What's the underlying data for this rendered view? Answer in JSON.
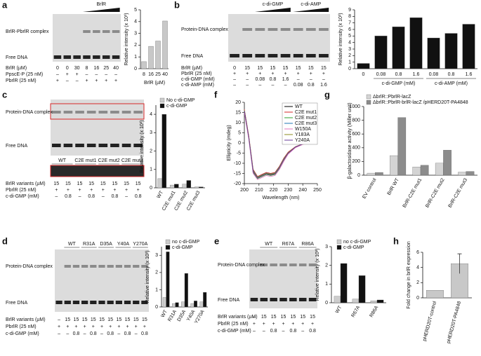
{
  "panels": [
    "a",
    "b",
    "c",
    "f",
    "g",
    "d",
    "e",
    "h"
  ],
  "gels": [
    {
      "top_labels": [
        "BrlR"
      ],
      "band_labels": [
        "BrlR-PbrlR complex",
        "Free DNA"
      ],
      "lane_labels": [],
      "rows": [
        {
          "label": "BrlR (µM)",
          "cells": [
            0,
            0,
            30,
            8,
            16,
            25,
            40
          ]
        },
        {
          "label": "PpscE-P (25 nM)",
          "cells": [
            "–",
            "+",
            "+",
            "–",
            "–",
            "–",
            "–"
          ]
        },
        {
          "label": "PbrlR (25 nM)",
          "cells": [
            "+",
            "–",
            "–",
            "+",
            "+",
            "+",
            "+"
          ]
        }
      ]
    },
    {
      "top_labels": [
        "c-di-GMP",
        "c-di-AMP"
      ],
      "band_labels": [
        "Protein-DNA complex",
        "Free DNA"
      ],
      "lane_labels": [],
      "rows": [
        {
          "label": "BrlR (µM)",
          "cells": [
            0,
            15,
            15,
            15,
            15,
            15,
            15,
            15
          ]
        },
        {
          "label": "PbrlR (25 nM)",
          "cells": [
            "+",
            "+",
            "+",
            "+",
            "+",
            "+",
            "+",
            "+"
          ]
        },
        {
          "label": "c-di-GMP (mM)",
          "cells": [
            "–",
            "–",
            0.08,
            0.8,
            1.6,
            "–",
            "–",
            "–"
          ]
        },
        {
          "label": "c-di-AMP (mM)",
          "cells": [
            "–",
            "–",
            "–",
            "–",
            "–",
            0.08,
            0.8,
            1.6
          ]
        }
      ]
    },
    {
      "top_labels": [],
      "band_labels": [
        "Protein-DNA complex",
        "Free DNA"
      ],
      "lane_labels": [
        "WT",
        "C2E mut1",
        "C2E mut2",
        "C2E mut3"
      ],
      "rows": [
        {
          "label": "BrlR variants (µM)",
          "cells": [
            15,
            15,
            15,
            15,
            15,
            15,
            15,
            15
          ]
        },
        {
          "label": "PbrlR (25 nM)",
          "cells": [
            "+",
            "+",
            "+",
            "+",
            "+",
            "+",
            "+",
            "+"
          ]
        },
        {
          "label": "c-di-GMP (mM)",
          "cells": [
            "–",
            0.8,
            "–",
            0.8,
            "–",
            0.8,
            "–",
            0.8
          ]
        }
      ]
    },
    {
      "top_labels": [],
      "band_labels": [
        "Protein-DNA complex",
        "Free DNA"
      ],
      "lane_labels": [
        "WT",
        "R31A",
        "D35A",
        "Y40A",
        "Y270A"
      ],
      "rows": [
        {
          "label": "BrlR variants (µM)",
          "cells": [
            "–",
            15,
            15,
            15,
            15,
            15,
            15,
            15,
            15,
            15,
            15
          ]
        },
        {
          "label": "PbrlR (25 nM)",
          "cells": [
            "+",
            "+",
            "+",
            "+",
            "+",
            "+",
            "+",
            "+",
            "+",
            "+",
            "+"
          ]
        },
        {
          "label": "c-di-GMP (mM)",
          "cells": [
            "–",
            "–",
            0.8,
            "–",
            0.8,
            "–",
            0.8,
            "–",
            0.8,
            "–",
            0.8
          ]
        }
      ]
    },
    {
      "top_labels": [],
      "band_labels": [
        "Protein-DNA complex",
        "Free DNA"
      ],
      "lane_labels": [
        "WT",
        "R67A",
        "R86A"
      ],
      "rows": [
        {
          "label": "BrlR variants (µM)",
          "cells": [
            "–",
            15,
            15,
            15,
            15,
            15,
            15
          ]
        },
        {
          "label": "PbrlR (25 nM)",
          "cells": [
            "+",
            "+",
            "+",
            "+",
            "+",
            "+",
            "+"
          ]
        },
        {
          "label": "c-di-GMP (mM)",
          "cells": [
            "–",
            "–",
            0.8,
            "–",
            0.8,
            "–",
            0.8
          ]
        }
      ]
    }
  ],
  "chart_data": [
    {
      "type": "bar",
      "ylabel": "Relative intensity (x 10³)",
      "xlabel": "BrlR (µM)",
      "categories": [
        8,
        16,
        25,
        40
      ],
      "values": [
        0.6,
        1.9,
        2.35,
        4.05
      ],
      "color": "#c8c8c8",
      "ylim": [
        0,
        5
      ],
      "yticks": [
        0,
        1,
        2,
        3,
        4,
        5
      ]
    },
    {
      "type": "bar",
      "ylabel": "Relative intensity (x 10³)",
      "categories": [
        0,
        0.08,
        0.8,
        1.6,
        0.08,
        0.8,
        1.6
      ],
      "group_labels": [
        "c-di-GMP (mM)",
        "c-di-AMP (mM)"
      ],
      "values": [
        0.8,
        5.0,
        6.4,
        7.8,
        4.7,
        5.4,
        6.8
      ],
      "color": "#111111",
      "ylim": [
        0,
        9
      ],
      "yticks": [
        0,
        1,
        2,
        3,
        4,
        5,
        6,
        7,
        8,
        9
      ]
    },
    {
      "type": "bar",
      "ylabel": "Relative intensity (x 10³)",
      "categories": [
        "WT",
        "C2E mut1",
        "C2E mut2",
        "C2E mut3"
      ],
      "series": [
        {
          "name": "No c-di-GMP",
          "color": "#cccccc",
          "values": [
            0.5,
            0.15,
            0.2,
            0.05
          ]
        },
        {
          "name": "c-di-GMP",
          "color": "#111111",
          "values": [
            4.0,
            0.2,
            0.4,
            0.05
          ]
        }
      ],
      "ylim": [
        0,
        4.5
      ],
      "yticks": [
        0,
        1,
        2,
        3,
        4
      ]
    },
    {
      "type": "line",
      "ylabel": "Ellipticity (mdeg)",
      "xlabel": "Wavelength (nm)",
      "x": [
        200,
        203,
        206,
        209,
        212,
        215,
        218,
        221,
        224,
        227,
        230,
        235,
        240,
        245,
        250
      ],
      "series": [
        {
          "name": "WT",
          "color": "#000000",
          "values": [
            16,
            3,
            -14,
            -17,
            -16,
            -15,
            -15.5,
            -15,
            -12,
            -8,
            -5,
            -2,
            -0.5,
            0,
            0
          ]
        },
        {
          "name": "C2E mut1",
          "color": "#d62728",
          "values": [
            16.5,
            3.5,
            -13,
            -16.5,
            -15.5,
            -14.5,
            -15,
            -14.5,
            -11.5,
            -7.5,
            -4.5,
            -1.8,
            -0.4,
            0,
            0
          ]
        },
        {
          "name": "C2E mut2",
          "color": "#2ca02c",
          "values": [
            15.5,
            2.5,
            -14.5,
            -17.5,
            -16.5,
            -15.5,
            -16,
            -15.5,
            -12.5,
            -8.5,
            -5.2,
            -2.1,
            -0.6,
            0,
            0
          ]
        },
        {
          "name": "C2E mut3",
          "color": "#1f77b4",
          "values": [
            16,
            3,
            -13.5,
            -16.8,
            -15.8,
            -14.8,
            -15.2,
            -14.8,
            -11.8,
            -7.8,
            -4.8,
            -1.9,
            -0.5,
            0,
            0
          ]
        },
        {
          "name": "W150A",
          "color": "#e377c2",
          "values": [
            15,
            2,
            -15,
            -18,
            -17,
            -16,
            -16.5,
            -16,
            -13,
            -9,
            -5.5,
            -2.3,
            -0.7,
            0,
            0
          ]
        },
        {
          "name": "Y183A",
          "color": "#8c8c1f",
          "values": [
            16.2,
            3.2,
            -13.8,
            -16.9,
            -15.9,
            -14.9,
            -15.3,
            -14.9,
            -11.9,
            -7.9,
            -4.9,
            -1.9,
            -0.5,
            0,
            0
          ]
        },
        {
          "name": "Y240A",
          "color": "#6a3d9a",
          "values": [
            15.8,
            2.8,
            -14.2,
            -17.2,
            -16.2,
            -15.2,
            -15.7,
            -15.2,
            -12.2,
            -8.2,
            -5.1,
            -2,
            -0.5,
            0,
            0
          ]
        }
      ],
      "xlim": [
        200,
        250
      ],
      "xticks": [
        200,
        210,
        220,
        230,
        240,
        250
      ],
      "ylim": [
        -20,
        20
      ],
      "yticks": [
        -20,
        -15,
        -10,
        -5,
        0,
        5,
        10,
        15,
        20
      ]
    },
    {
      "type": "bar",
      "ylabel": "β-galactosidase activity (Miller unit)",
      "categories": [
        "EV control",
        "BrlR WT",
        "BrlR-C2E mut1",
        "BrlR-C2E mut2",
        "BrlR-C2E mut3"
      ],
      "series": [
        {
          "name": "ΔbrlR::PbrlR-lacZ",
          "color": "#d4d4d4",
          "values": [
            30,
            285,
            120,
            175,
            45
          ]
        },
        {
          "name": "ΔbrlR::PbrlR-brlR-lacZ /pHERD20T-PA4848",
          "color": "#8c8c8c",
          "values": [
            40,
            840,
            145,
            365,
            55
          ]
        }
      ],
      "ylim": [
        0,
        1000
      ],
      "yticks": [
        0,
        200,
        400,
        600,
        800,
        1000
      ]
    },
    {
      "type": "bar",
      "ylabel": "Relative intensity (x 10³)",
      "categories": [
        "WT",
        "R31A",
        "D35A",
        "Y40A",
        "Y270A"
      ],
      "series": [
        {
          "name": "no c-di-GMP",
          "color": "#cccccc",
          "values": [
            0.55,
            0.2,
            0.3,
            0.2,
            0.3
          ]
        },
        {
          "name": "c-di-GMP",
          "color": "#111111",
          "values": [
            3.2,
            0.25,
            1.95,
            0.35,
            0.85
          ]
        }
      ],
      "ylim": [
        0,
        3.5
      ],
      "yticks": [
        0,
        1,
        2,
        3
      ]
    },
    {
      "type": "bar",
      "ylabel": "Relative intensity (x 10³)",
      "categories": [
        "WT",
        "R67A",
        "R86A"
      ],
      "series": [
        {
          "name": "no c-di-GMP",
          "color": "#cccccc",
          "values": [
            0.35,
            0.2,
            0.1
          ]
        },
        {
          "name": "c-di-GMP",
          "color": "#111111",
          "values": [
            2.1,
            1.45,
            0.15
          ]
        }
      ],
      "ylim": [
        0,
        3
      ],
      "yticks": [
        0,
        1,
        2,
        3
      ]
    },
    {
      "type": "bar",
      "ylabel": "Fold change in brlR expression",
      "categories": [
        "pHERD20T-control",
        "pHERD20T-PA4848"
      ],
      "values": [
        1,
        4.5
      ],
      "errors": [
        null,
        1.3
      ],
      "color": "#c8c8c8",
      "ylim": [
        0,
        6
      ],
      "yticks": [
        0,
        2,
        4,
        6
      ]
    }
  ]
}
